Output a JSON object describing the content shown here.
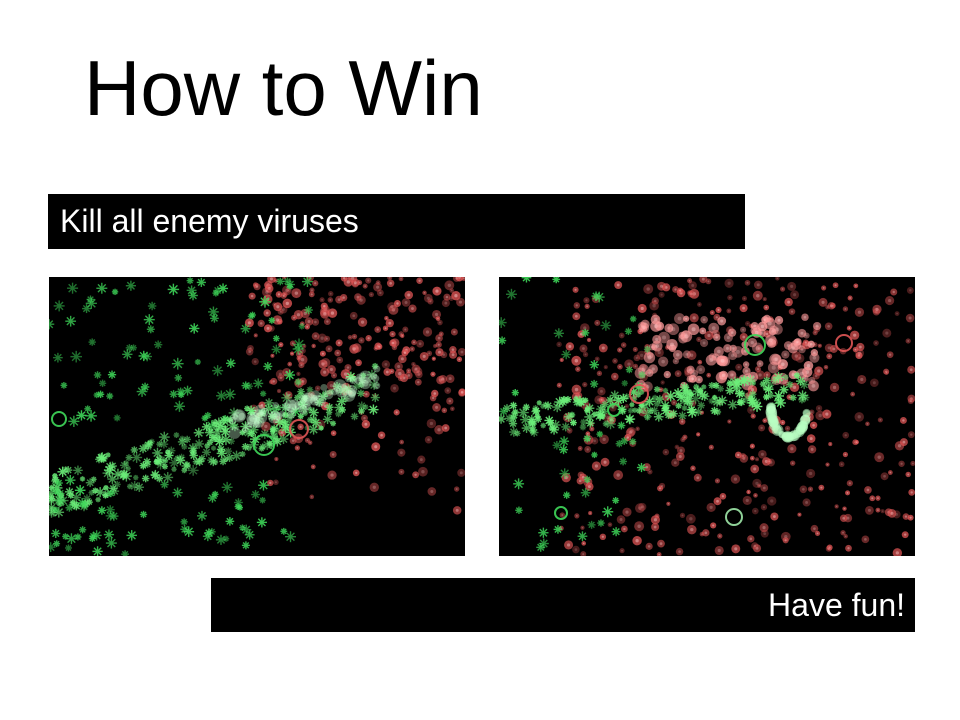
{
  "slide": {
    "title": "How to Win",
    "instruction": "Kill all enemy viruses",
    "closing": "Have fun!"
  },
  "screenshots": [
    {
      "name": "battle-before",
      "caption": ""
    },
    {
      "name": "battle-after",
      "caption": ""
    }
  ],
  "colors": {
    "background": "#ffffff",
    "banner": "#000000",
    "banner_text": "#ffffff",
    "friendly_virus": "#3fd85a",
    "enemy_virus": "#e05555"
  }
}
